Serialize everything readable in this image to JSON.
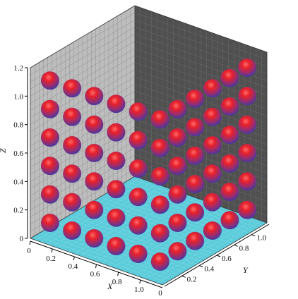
{
  "chart_data": {
    "type": "scatter",
    "subtype": "3d-spheres",
    "title": "",
    "xlabel": "X",
    "ylabel": "Y",
    "zlabel": "Z",
    "xlim": [
      0,
      1.2
    ],
    "ylim": [
      0,
      1.2
    ],
    "zlim": [
      0,
      1.2
    ],
    "x_ticks": [
      "0",
      "0.2",
      "0.4",
      "0.6",
      "0.8",
      "1.0"
    ],
    "y_ticks": [
      "0.2",
      "0.4",
      "0.6",
      "0.8",
      "1.0"
    ],
    "z_ticks": [
      "0",
      "0.2",
      "0.4",
      "0.6",
      "0.8",
      "1.0",
      "1.2"
    ],
    "grid": true,
    "pane_colors": {
      "floor": "#5ccbda",
      "left_wall": "#bdbdbd",
      "right_wall": "#505050"
    },
    "marker_color_top": "#e8202a",
    "marker_color_bottom": "#3a3aa8",
    "sphere_radius": 0.06,
    "points": [
      {
        "x": 0.1,
        "y": 0.1,
        "z": 0.1
      },
      {
        "x": 0.3,
        "y": 0.1,
        "z": 0.1
      },
      {
        "x": 0.5,
        "y": 0.1,
        "z": 0.1
      },
      {
        "x": 0.7,
        "y": 0.1,
        "z": 0.1
      },
      {
        "x": 0.9,
        "y": 0.1,
        "z": 0.1
      },
      {
        "x": 1.1,
        "y": 0.1,
        "z": 0.1
      },
      {
        "x": 1.1,
        "y": 0.3,
        "z": 0.1
      },
      {
        "x": 1.1,
        "y": 0.5,
        "z": 0.1
      },
      {
        "x": 1.1,
        "y": 0.7,
        "z": 0.1
      },
      {
        "x": 1.1,
        "y": 0.9,
        "z": 0.1
      },
      {
        "x": 1.1,
        "y": 1.1,
        "z": 0.1
      },
      {
        "x": 0.1,
        "y": 0.1,
        "z": 0.3
      },
      {
        "x": 0.3,
        "y": 0.1,
        "z": 0.3
      },
      {
        "x": 0.5,
        "y": 0.1,
        "z": 0.3
      },
      {
        "x": 0.7,
        "y": 0.1,
        "z": 0.3
      },
      {
        "x": 0.9,
        "y": 0.1,
        "z": 0.3
      },
      {
        "x": 1.1,
        "y": 0.1,
        "z": 0.3
      },
      {
        "x": 1.1,
        "y": 0.3,
        "z": 0.3
      },
      {
        "x": 1.1,
        "y": 0.5,
        "z": 0.3
      },
      {
        "x": 1.1,
        "y": 0.7,
        "z": 0.3
      },
      {
        "x": 1.1,
        "y": 0.9,
        "z": 0.3
      },
      {
        "x": 1.1,
        "y": 1.1,
        "z": 0.3
      },
      {
        "x": 0.1,
        "y": 0.1,
        "z": 0.5
      },
      {
        "x": 0.3,
        "y": 0.1,
        "z": 0.5
      },
      {
        "x": 0.5,
        "y": 0.1,
        "z": 0.5
      },
      {
        "x": 0.7,
        "y": 0.1,
        "z": 0.5
      },
      {
        "x": 0.9,
        "y": 0.1,
        "z": 0.5
      },
      {
        "x": 1.1,
        "y": 0.1,
        "z": 0.5
      },
      {
        "x": 1.1,
        "y": 0.3,
        "z": 0.5
      },
      {
        "x": 1.1,
        "y": 0.5,
        "z": 0.5
      },
      {
        "x": 1.1,
        "y": 0.7,
        "z": 0.5
      },
      {
        "x": 1.1,
        "y": 0.9,
        "z": 0.5
      },
      {
        "x": 1.1,
        "y": 1.1,
        "z": 0.5
      },
      {
        "x": 0.1,
        "y": 0.1,
        "z": 0.7
      },
      {
        "x": 0.3,
        "y": 0.1,
        "z": 0.7
      },
      {
        "x": 0.5,
        "y": 0.1,
        "z": 0.7
      },
      {
        "x": 0.7,
        "y": 0.1,
        "z": 0.7
      },
      {
        "x": 0.9,
        "y": 0.1,
        "z": 0.7
      },
      {
        "x": 1.1,
        "y": 0.1,
        "z": 0.7
      },
      {
        "x": 1.1,
        "y": 0.3,
        "z": 0.7
      },
      {
        "x": 1.1,
        "y": 0.5,
        "z": 0.7
      },
      {
        "x": 1.1,
        "y": 0.7,
        "z": 0.7
      },
      {
        "x": 1.1,
        "y": 0.9,
        "z": 0.7
      },
      {
        "x": 1.1,
        "y": 1.1,
        "z": 0.7
      },
      {
        "x": 0.1,
        "y": 0.1,
        "z": 0.9
      },
      {
        "x": 0.3,
        "y": 0.1,
        "z": 0.9
      },
      {
        "x": 0.5,
        "y": 0.1,
        "z": 0.9
      },
      {
        "x": 0.7,
        "y": 0.1,
        "z": 0.9
      },
      {
        "x": 0.9,
        "y": 0.1,
        "z": 0.9
      },
      {
        "x": 1.1,
        "y": 0.1,
        "z": 0.9
      },
      {
        "x": 1.1,
        "y": 0.3,
        "z": 0.9
      },
      {
        "x": 1.1,
        "y": 0.5,
        "z": 0.9
      },
      {
        "x": 1.1,
        "y": 0.7,
        "z": 0.9
      },
      {
        "x": 1.1,
        "y": 0.9,
        "z": 0.9
      },
      {
        "x": 1.1,
        "y": 1.1,
        "z": 0.9
      },
      {
        "x": 0.1,
        "y": 0.1,
        "z": 1.1
      },
      {
        "x": 0.3,
        "y": 0.1,
        "z": 1.1
      },
      {
        "x": 0.5,
        "y": 0.1,
        "z": 1.1
      },
      {
        "x": 0.7,
        "y": 0.1,
        "z": 1.1
      },
      {
        "x": 0.9,
        "y": 0.1,
        "z": 1.1
      },
      {
        "x": 1.1,
        "y": 0.1,
        "z": 1.1
      },
      {
        "x": 1.1,
        "y": 0.3,
        "z": 1.1
      },
      {
        "x": 1.1,
        "y": 0.5,
        "z": 1.1
      },
      {
        "x": 1.1,
        "y": 0.7,
        "z": 1.1
      },
      {
        "x": 1.1,
        "y": 0.9,
        "z": 1.1
      },
      {
        "x": 1.1,
        "y": 1.1,
        "z": 1.1
      }
    ]
  }
}
